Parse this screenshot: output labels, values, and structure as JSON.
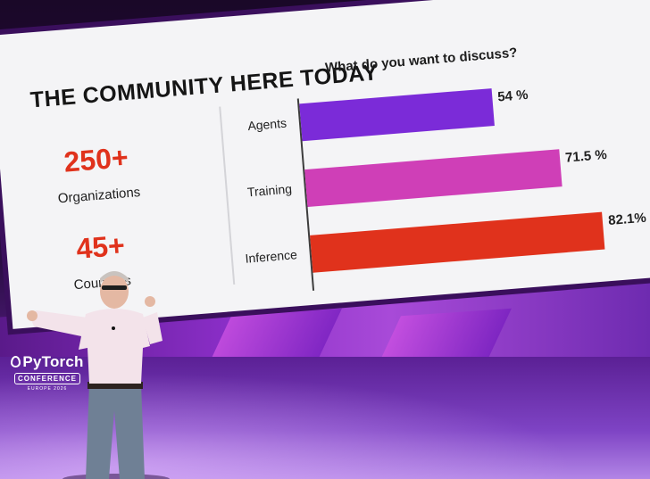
{
  "slide": {
    "title": "THE COMMUNITY HERE TODAY",
    "stats": [
      {
        "value": "250+",
        "label": "Organizations"
      },
      {
        "value": "45+",
        "label": "Countries"
      }
    ]
  },
  "chart_data": {
    "type": "bar",
    "orientation": "horizontal",
    "title": "What do you want to discuss?",
    "categories": [
      "Agents",
      "Training",
      "Inference"
    ],
    "values": [
      54,
      71.5,
      82.1
    ],
    "value_labels": [
      "54 %",
      "71.5 %",
      "82.1%"
    ],
    "colors": [
      "#7b2bd8",
      "#cf3fb7",
      "#e0321c"
    ],
    "xlim": [
      0,
      100
    ]
  },
  "logo": {
    "word": "PyTorch",
    "badge": "CONFERENCE",
    "sub": "EUROPE 2026"
  },
  "colors": {
    "accent_red": "#e0321c",
    "stage_purple": "#7e43c4"
  }
}
